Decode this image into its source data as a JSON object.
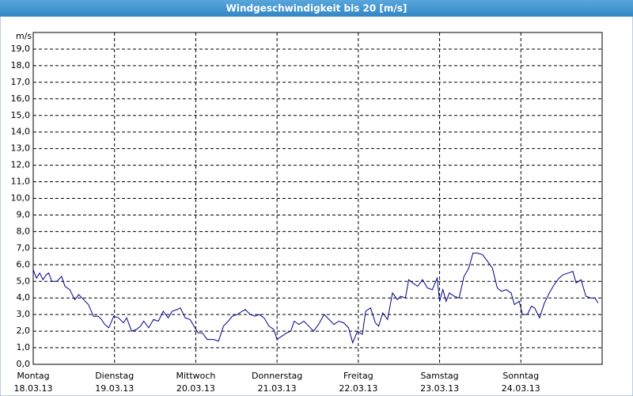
{
  "chart_data": {
    "type": "line",
    "title": "Windgeschwindigkeit bis 20 [m/s]",
    "y_label": "m/s",
    "x": [
      0,
      0.04,
      0.08,
      0.12,
      0.16,
      0.19,
      0.23,
      0.29,
      0.35,
      0.39,
      0.45,
      0.51,
      0.56,
      0.62,
      0.68,
      0.74,
      0.8,
      0.84,
      0.88,
      0.93,
      0.99,
      1.05,
      1.11,
      1.15,
      1.21,
      1.27,
      1.32,
      1.36,
      1.42,
      1.48,
      1.54,
      1.6,
      1.66,
      1.71,
      1.77,
      1.81,
      1.87,
      1.93,
      1.99,
      2.03,
      2.08,
      2.14,
      2.22,
      2.28,
      2.34,
      2.4,
      2.45,
      2.51,
      2.57,
      2.61,
      2.67,
      2.73,
      2.78,
      2.84,
      2.9,
      2.96,
      3.0,
      3.06,
      3.12,
      3.17,
      3.21,
      3.27,
      3.33,
      3.39,
      3.45,
      3.51,
      3.58,
      3.64,
      3.7,
      3.76,
      3.82,
      3.88,
      3.93,
      3.99,
      4.05,
      4.09,
      4.15,
      4.21,
      4.25,
      4.3,
      4.36,
      4.42,
      4.48,
      4.52,
      4.58,
      4.62,
      4.67,
      4.73,
      4.79,
      4.85,
      4.91,
      4.97,
      5.0,
      5.04,
      5.08,
      5.12,
      5.18,
      5.24,
      5.3,
      5.36,
      5.41,
      5.47,
      5.53,
      5.59,
      5.65,
      5.71,
      5.76,
      5.82,
      5.88,
      5.92,
      5.98,
      6.02,
      6.08,
      6.13,
      6.17,
      6.23,
      6.29,
      6.35,
      6.41,
      6.47,
      6.52,
      6.58,
      6.64,
      6.68,
      6.74,
      6.8,
      6.86,
      6.91,
      6.95
    ],
    "series": [
      {
        "name": "Windgeschwindigkeit",
        "color": "#00008b",
        "values": [
          5.7,
          5.2,
          5.5,
          5.1,
          5.4,
          5.5,
          5.0,
          5.0,
          5.3,
          4.7,
          4.5,
          3.9,
          4.2,
          3.9,
          3.6,
          2.9,
          2.9,
          2.7,
          2.4,
          2.2,
          2.9,
          2.8,
          2.5,
          2.8,
          2.0,
          2.1,
          2.3,
          2.6,
          2.2,
          2.7,
          2.6,
          3.2,
          2.8,
          3.2,
          3.3,
          3.4,
          2.8,
          2.7,
          2.2,
          1.9,
          1.9,
          1.5,
          1.5,
          1.4,
          2.3,
          2.6,
          2.9,
          3.0,
          3.2,
          3.3,
          3.0,
          2.9,
          3.0,
          2.8,
          2.3,
          2.1,
          1.5,
          1.7,
          1.9,
          2.0,
          2.6,
          2.4,
          2.6,
          2.3,
          2.0,
          2.4,
          3.0,
          2.7,
          2.4,
          2.6,
          2.5,
          2.2,
          1.3,
          2.0,
          1.8,
          3.2,
          3.4,
          2.5,
          2.3,
          3.1,
          2.7,
          4.3,
          3.9,
          4.1,
          4.0,
          5.1,
          4.9,
          4.7,
          5.1,
          4.6,
          4.5,
          5.2,
          3.8,
          4.5,
          3.8,
          4.3,
          4.1,
          4.0,
          5.3,
          5.8,
          6.7,
          6.7,
          6.6,
          6.2,
          5.8,
          4.6,
          4.4,
          4.5,
          4.3,
          3.6,
          3.8,
          3.0,
          3.0,
          3.5,
          3.4,
          2.8,
          3.7,
          4.3,
          4.8,
          5.2,
          5.4,
          5.5,
          5.6,
          4.9,
          5.1,
          4.1,
          4.0,
          4.0,
          3.7
        ]
      }
    ],
    "xlim": [
      0,
      7
    ],
    "ylim": [
      0,
      20
    ],
    "xticks": [
      {
        "value": 0,
        "label": "Montag"
      },
      {
        "value": 1,
        "label": "Dienstag"
      },
      {
        "value": 2,
        "label": "Mittwoch"
      },
      {
        "value": 3,
        "label": "Donnerstag"
      },
      {
        "value": 4,
        "label": "Freitag"
      },
      {
        "value": 5,
        "label": "Samstag"
      },
      {
        "value": 6,
        "label": "Sonntag"
      }
    ],
    "xtick_dates": [
      "18.03.13",
      "19.03.13",
      "20.03.13",
      "21.03.13",
      "22.03.13",
      "23.03.13",
      "24.03.13"
    ],
    "yticks": [
      {
        "value": 0,
        "label": "0,0"
      },
      {
        "value": 1,
        "label": "1,0"
      },
      {
        "value": 2,
        "label": "2,0"
      },
      {
        "value": 3,
        "label": "3,0"
      },
      {
        "value": 4,
        "label": "4,0"
      },
      {
        "value": 5,
        "label": "5,0"
      },
      {
        "value": 6,
        "label": "6,0"
      },
      {
        "value": 7,
        "label": "7,0"
      },
      {
        "value": 8,
        "label": "8,0"
      },
      {
        "value": 9,
        "label": "9,0"
      },
      {
        "value": 10,
        "label": "10,0"
      },
      {
        "value": 11,
        "label": "11,0"
      },
      {
        "value": 12,
        "label": "12,0"
      },
      {
        "value": 13,
        "label": "13,0"
      },
      {
        "value": 14,
        "label": "14,0"
      },
      {
        "value": 15,
        "label": "15,0"
      },
      {
        "value": 16,
        "label": "16,0"
      },
      {
        "value": 17,
        "label": "17,0"
      },
      {
        "value": 18,
        "label": "18,0"
      },
      {
        "value": 19,
        "label": "19,0"
      }
    ],
    "grid": true
  }
}
